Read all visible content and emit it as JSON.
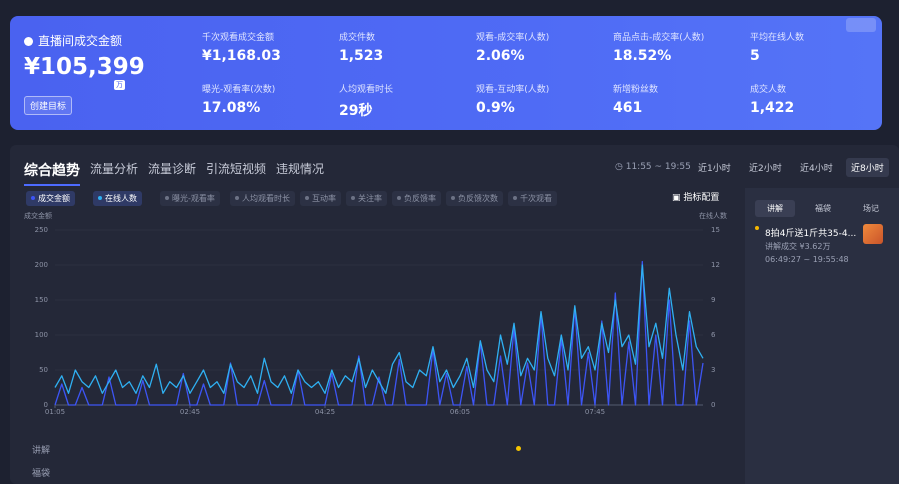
{
  "summary": {
    "title": "直播间成交金额",
    "value": "¥105,399",
    "unit": "万",
    "button": "创建目标"
  },
  "metrics": [
    {
      "label": "千次观看成交金额",
      "value": "¥1,168.03"
    },
    {
      "label": "成交件数",
      "value": "1,523"
    },
    {
      "label": "观看-成交率(人数)",
      "value": "2.06%"
    },
    {
      "label": "商品点击-成交率(人数)",
      "value": "18.52%"
    },
    {
      "label": "平均在线人数",
      "value": "5"
    },
    {
      "label": "曝光-观看率(次数)",
      "value": "17.08%"
    },
    {
      "label": "人均观看时长",
      "value": "29秒"
    },
    {
      "label": "观看-互动率(人数)",
      "value": "0.9%"
    },
    {
      "label": "新增粉丝数",
      "value": "461"
    },
    {
      "label": "成交人数",
      "value": "1,422"
    }
  ],
  "tabs": [
    "综合趋势",
    "流量分析",
    "流量诊断",
    "引流短视频",
    "违规情况"
  ],
  "time_range": "11:55 ~ 19:55",
  "range_buttons": [
    "近1小时",
    "近2小时",
    "近4小时",
    "近8小时"
  ],
  "chips": [
    "曝光-观看率",
    "人均观看时长",
    "互动率",
    "关注率",
    "负反馈率",
    "负反馈次数",
    "千次观看"
  ],
  "config_button": "指标配置",
  "chart_data": {
    "type": "line",
    "ylabel": "成交金额",
    "y2label": "在线人数",
    "categories": [
      "01:05",
      null,
      null,
      null,
      null,
      null,
      null,
      null,
      null,
      null,
      null,
      null,
      null,
      null,
      null,
      null,
      null,
      null,
      null,
      null,
      "02:45",
      null,
      null,
      null,
      null,
      null,
      null,
      null,
      null,
      null,
      null,
      null,
      null,
      null,
      null,
      null,
      null,
      null,
      null,
      null,
      "04:25",
      null,
      null,
      null,
      null,
      null,
      null,
      null,
      null,
      null,
      null,
      null,
      null,
      null,
      null,
      null,
      null,
      null,
      null,
      null,
      "06:05",
      null,
      null,
      null,
      null,
      null,
      null,
      null,
      null,
      null,
      null,
      null,
      null,
      null,
      null,
      null,
      null,
      null,
      null,
      null,
      "07:45",
      null,
      null,
      null,
      null,
      null,
      null,
      null,
      null,
      null,
      null,
      null,
      null,
      null,
      null,
      null,
      null
    ],
    "series": [
      {
        "name": "成交金额",
        "color": "#3d55f5",
        "values": [
          0,
          30,
          0,
          0,
          25,
          0,
          0,
          0,
          40,
          0,
          0,
          0,
          0,
          35,
          0,
          0,
          0,
          0,
          0,
          45,
          0,
          0,
          30,
          0,
          0,
          0,
          60,
          0,
          0,
          0,
          0,
          35,
          0,
          0,
          0,
          0,
          50,
          0,
          0,
          0,
          0,
          45,
          0,
          0,
          0,
          70,
          0,
          0,
          40,
          0,
          0,
          65,
          0,
          0,
          0,
          0,
          80,
          0,
          45,
          0,
          0,
          55,
          0,
          90,
          0,
          0,
          70,
          0,
          110,
          0,
          60,
          0,
          130,
          0,
          0,
          95,
          0,
          140,
          0,
          75,
          0,
          120,
          0,
          160,
          0,
          90,
          0,
          205,
          0,
          100,
          0,
          150,
          0,
          0,
          120,
          0,
          60
        ]
      },
      {
        "name": "在线人数",
        "color": "#2fb0f2",
        "axis": "y2",
        "values": [
          1.5,
          2.5,
          1,
          3,
          2,
          1.5,
          2.5,
          1,
          2,
          3,
          1.5,
          2,
          1,
          2.5,
          1.5,
          3.5,
          1,
          2,
          1.5,
          2.5,
          1,
          2,
          3,
          1.5,
          2,
          1,
          3.5,
          2,
          1.5,
          2.5,
          1,
          4,
          2,
          1.5,
          2.5,
          1,
          3,
          2,
          1.5,
          2,
          1,
          3,
          1.5,
          2.5,
          2,
          4,
          1.5,
          3,
          2,
          1,
          3.5,
          4.5,
          2,
          1.5,
          3,
          2.5,
          5,
          2,
          3,
          1.5,
          2.5,
          4,
          1.5,
          5.5,
          3,
          2,
          6,
          3.5,
          7,
          2.5,
          4,
          3,
          8,
          4,
          2.5,
          6,
          3,
          8.5,
          4,
          5,
          3,
          7,
          4.5,
          9,
          5,
          6,
          3.5,
          12,
          5,
          7,
          4,
          10,
          6,
          3,
          8,
          5,
          4
        ]
      }
    ],
    "ylim": [
      0,
      250
    ],
    "yticks": [
      0,
      50,
      100,
      150,
      200,
      250
    ],
    "y2lim": [
      0,
      15
    ],
    "y2ticks": [
      0,
      3,
      6,
      9,
      12,
      15
    ],
    "grid": true
  },
  "side_panel": {
    "tabs": [
      "讲解",
      "福袋",
      "场记"
    ],
    "item_title": "8拍4斤送1斤共35-4...",
    "item_sales": "讲解成交 ¥3.62万",
    "item_time": "06:49:27 ~ 19:55:48"
  },
  "lanes": [
    "讲解",
    "福袋"
  ]
}
